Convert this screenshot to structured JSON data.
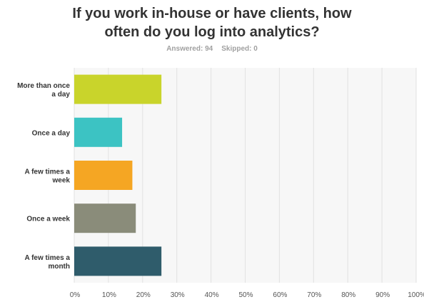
{
  "chart_data": {
    "type": "bar",
    "orientation": "horizontal",
    "title_lines": [
      "If you work in-house or have clients, how",
      "often do you log into analytics?"
    ],
    "answered_label": "Answered: 94",
    "skipped_label": "Skipped: 0",
    "categories": [
      [
        "More than once",
        "a day"
      ],
      [
        "Once a day"
      ],
      [
        "A few times a",
        "week"
      ],
      [
        "Once a week"
      ],
      [
        "A few times a",
        "month"
      ]
    ],
    "values": [
      25.5,
      14.0,
      17.0,
      18.0,
      25.5
    ],
    "colors": [
      "#c9d42b",
      "#3cc3c3",
      "#f5a623",
      "#8a8c7a",
      "#2f5c6b"
    ],
    "xlim": [
      0,
      100
    ],
    "xticks": [
      "0%",
      "10%",
      "20%",
      "30%",
      "40%",
      "50%",
      "60%",
      "70%",
      "80%",
      "90%",
      "100%"
    ],
    "grid": true
  }
}
